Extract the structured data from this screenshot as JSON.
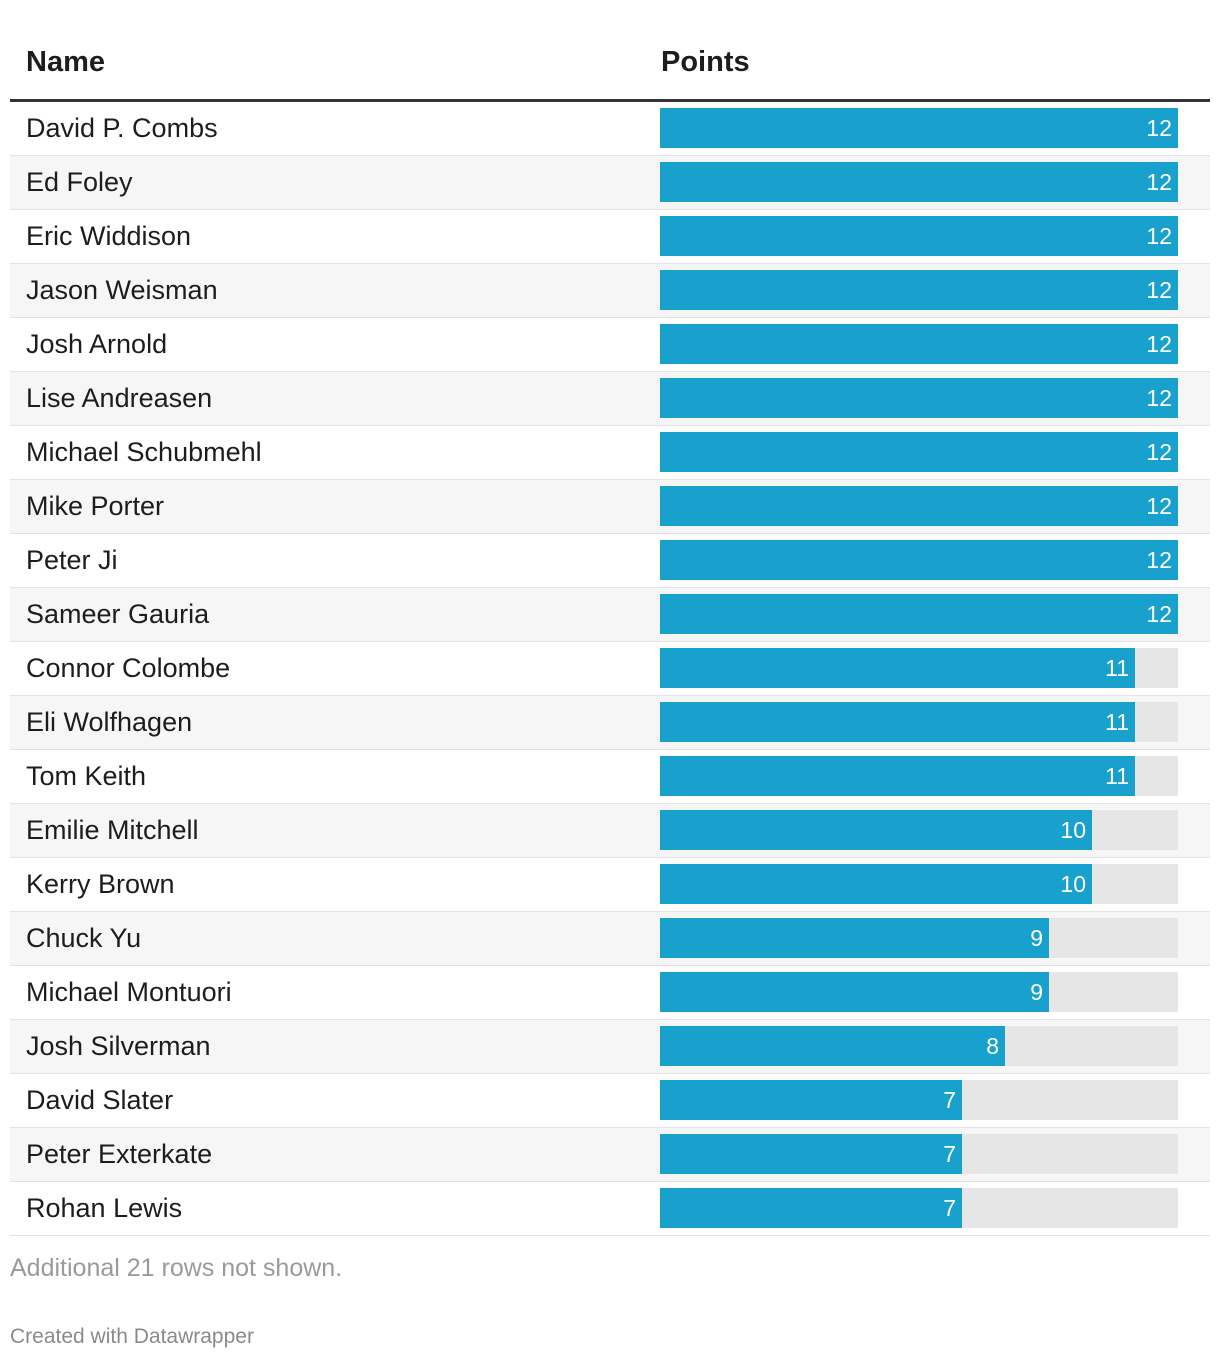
{
  "chart_data": {
    "type": "table",
    "columns": [
      "Name",
      "Points"
    ],
    "x_max": 12,
    "bar_color": "#18a1cd",
    "track_color": "#e6e6e6",
    "rows": [
      {
        "name": "David P. Combs",
        "points": 12
      },
      {
        "name": "Ed Foley",
        "points": 12
      },
      {
        "name": "Eric Widdison",
        "points": 12
      },
      {
        "name": "Jason Weisman",
        "points": 12
      },
      {
        "name": "Josh Arnold",
        "points": 12
      },
      {
        "name": "Lise Andreasen",
        "points": 12
      },
      {
        "name": "Michael Schubmehl",
        "points": 12
      },
      {
        "name": "Mike Porter",
        "points": 12
      },
      {
        "name": "Peter Ji",
        "points": 12
      },
      {
        "name": "Sameer Gauria",
        "points": 12
      },
      {
        "name": "Connor Colombe",
        "points": 11
      },
      {
        "name": "Eli Wolfhagen",
        "points": 11
      },
      {
        "name": "Tom Keith",
        "points": 11
      },
      {
        "name": "Emilie Mitchell",
        "points": 10
      },
      {
        "name": "Kerry Brown",
        "points": 10
      },
      {
        "name": "Chuck Yu",
        "points": 9
      },
      {
        "name": "Michael Montuori",
        "points": 9
      },
      {
        "name": "Josh Silverman",
        "points": 8
      },
      {
        "name": "David Slater",
        "points": 7
      },
      {
        "name": "Peter Exterkate",
        "points": 7
      },
      {
        "name": "Rohan Lewis",
        "points": 7
      }
    ]
  },
  "note": "Additional 21 rows not shown.",
  "credit": "Created with Datawrapper"
}
